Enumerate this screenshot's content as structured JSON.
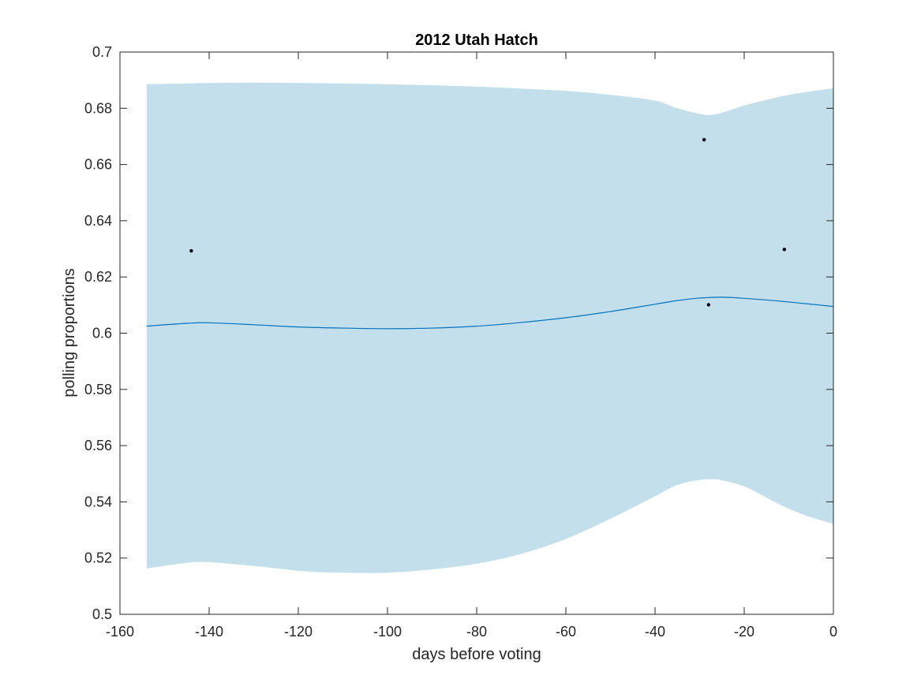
{
  "chart_data": {
    "type": "line",
    "title": "2012 Utah Hatch",
    "xlabel": "days before voting",
    "ylabel": "polling proportions",
    "xlim": [
      -160,
      0
    ],
    "ylim": [
      0.5,
      0.7
    ],
    "x_ticks": [
      -160,
      -140,
      -120,
      -100,
      -80,
      -60,
      -40,
      -20,
      0
    ],
    "x_tick_labels": [
      "-160",
      "-140",
      "-120",
      "-100",
      "-80",
      "-60",
      "-40",
      "-20",
      "0"
    ],
    "y_ticks": [
      0.5,
      0.52,
      0.54,
      0.56,
      0.58,
      0.6,
      0.62,
      0.64,
      0.66,
      0.68,
      0.7
    ],
    "y_tick_labels": [
      "0.5",
      "0.52",
      "0.54",
      "0.56",
      "0.58",
      "0.6",
      "0.62",
      "0.64",
      "0.66",
      "0.68",
      "0.7"
    ],
    "grid": false,
    "colors": {
      "band": "#c2dfeb",
      "line": "#0072bd",
      "points": "#000000",
      "axes": "#262626"
    },
    "series": [
      {
        "kind": "mean-line",
        "x": [
          -154,
          -145,
          -140,
          -130,
          -120,
          -110,
          -100,
          -90,
          -80,
          -70,
          -60,
          -50,
          -40,
          -35,
          -30,
          -25,
          -20,
          -15,
          -10,
          -5,
          0
        ],
        "y": [
          0.6025,
          0.6035,
          0.6037,
          0.603,
          0.6022,
          0.6018,
          0.6016,
          0.6018,
          0.6025,
          0.6038,
          0.6055,
          0.6077,
          0.6103,
          0.6116,
          0.6125,
          0.6128,
          0.6124,
          0.6118,
          0.6111,
          0.6103,
          0.6095
        ]
      },
      {
        "kind": "band-upper",
        "x": [
          -154,
          -145,
          -140,
          -130,
          -120,
          -110,
          -100,
          -90,
          -80,
          -70,
          -60,
          -50,
          -40,
          -35,
          -30,
          -28,
          -25,
          -20,
          -15,
          -10,
          -5,
          0
        ],
        "y": [
          0.6885,
          0.6888,
          0.689,
          0.6891,
          0.689,
          0.6888,
          0.6885,
          0.6882,
          0.6877,
          0.687,
          0.6862,
          0.6848,
          0.6827,
          0.68,
          0.678,
          0.6776,
          0.6784,
          0.681,
          0.683,
          0.6848,
          0.686,
          0.6871
        ]
      },
      {
        "kind": "band-lower",
        "x": [
          -154,
          -145,
          -140,
          -130,
          -120,
          -110,
          -100,
          -90,
          -80,
          -70,
          -60,
          -50,
          -40,
          -35,
          -30,
          -27,
          -25,
          -20,
          -15,
          -10,
          -5,
          0
        ],
        "y": [
          0.5163,
          0.5183,
          0.5185,
          0.5172,
          0.5155,
          0.5148,
          0.5148,
          0.516,
          0.518,
          0.5215,
          0.5268,
          0.534,
          0.542,
          0.546,
          0.5478,
          0.548,
          0.5477,
          0.5455,
          0.5415,
          0.5375,
          0.5345,
          0.5322
        ]
      },
      {
        "kind": "polls",
        "x": [
          -144,
          -29,
          -28,
          -11
        ],
        "y": [
          0.6293,
          0.6688,
          0.6101,
          0.6298
        ]
      }
    ]
  }
}
